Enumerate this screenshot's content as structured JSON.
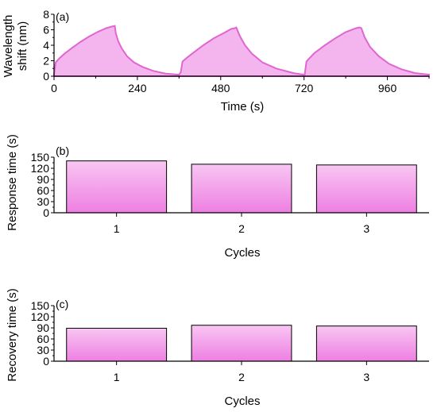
{
  "chart_data": [
    {
      "panel": "(a)",
      "type": "area",
      "xlabel": "Time (s)",
      "ylabel": [
        "Wavelength",
        "shift (nm)"
      ],
      "xlim": [
        0,
        1080
      ],
      "ylim": [
        0,
        8
      ],
      "xticks": [
        0,
        240,
        480,
        720,
        960
      ],
      "yticks": [
        0,
        2,
        4,
        6,
        8
      ],
      "color": "#e066d2",
      "fill": "#f4b4ee",
      "series": [
        {
          "x": [
            0,
            5,
            15,
            30,
            50,
            75,
            100,
            125,
            150,
            165,
            175,
            178,
            185,
            195,
            210,
            230,
            255,
            285,
            320,
            355,
            360,
            365,
            370,
            380,
            400,
            430,
            460,
            490,
            510,
            520,
            525,
            535,
            550,
            570,
            600,
            640,
            690,
            718,
            722,
            727,
            735,
            750,
            780,
            810,
            840,
            870,
            880,
            885,
            895,
            910,
            935,
            965,
            1000,
            1040,
            1080
          ],
          "y": [
            0.3,
            1.8,
            2.3,
            2.9,
            3.6,
            4.4,
            5.1,
            5.7,
            6.2,
            6.4,
            6.5,
            5.5,
            4.5,
            3.6,
            2.6,
            1.8,
            1.2,
            0.7,
            0.35,
            0.2,
            0.2,
            0.5,
            1.9,
            2.3,
            3.0,
            4.0,
            4.9,
            5.6,
            6.1,
            6.2,
            6.3,
            5.2,
            4.0,
            2.9,
            1.8,
            1.0,
            0.4,
            0.2,
            0.2,
            1.9,
            2.3,
            3.0,
            4.0,
            4.9,
            5.7,
            6.2,
            6.3,
            6.2,
            5.0,
            3.8,
            2.6,
            1.6,
            0.9,
            0.4,
            0.2
          ]
        }
      ]
    },
    {
      "panel": "(b)",
      "type": "bar",
      "xlabel": "Cycles",
      "ylabel": "Response time (s)",
      "categories": [
        "1",
        "2",
        "3"
      ],
      "values": [
        140,
        131,
        129
      ],
      "ylim": [
        0,
        150
      ],
      "yticks": [
        0,
        30,
        60,
        90,
        120,
        150
      ],
      "fill_top": "#f8c6f2",
      "fill_bottom": "#ee7fe2"
    },
    {
      "panel": "(c)",
      "type": "bar",
      "xlabel": "Cycles",
      "ylabel": "Recovery time (s)",
      "categories": [
        "1",
        "2",
        "3"
      ],
      "values": [
        89,
        97,
        95
      ],
      "ylim": [
        0,
        150
      ],
      "yticks": [
        0,
        30,
        60,
        90,
        120,
        150
      ],
      "fill_top": "#f8c6f2",
      "fill_bottom": "#ee7fe2"
    }
  ]
}
